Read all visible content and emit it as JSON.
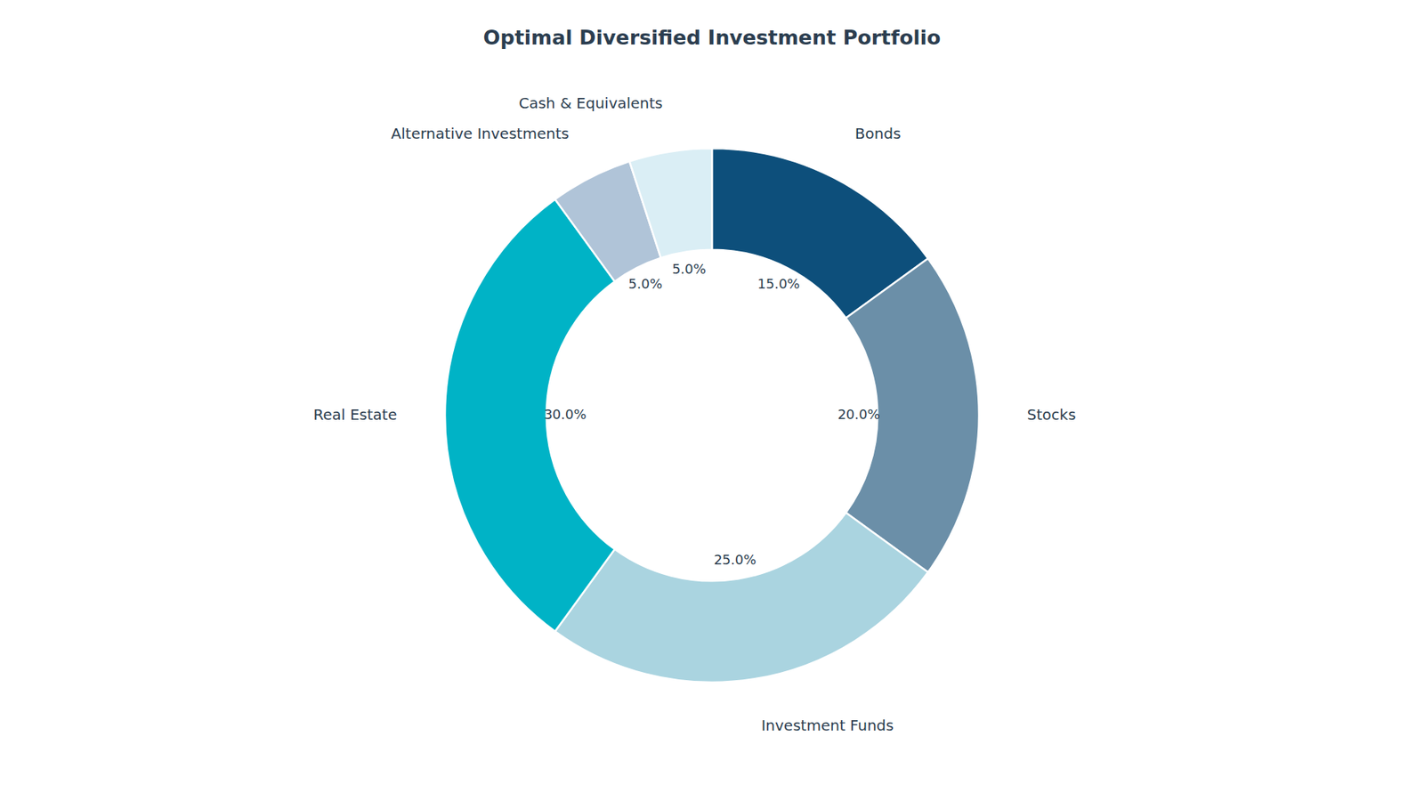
{
  "chart_data": {
    "type": "pie",
    "title": "Optimal Diversified Investment Portfolio",
    "categories": [
      "Bonds",
      "Stocks",
      "Investment Funds",
      "Real Estate",
      "Alternative Investments",
      "Cash & Equivalents"
    ],
    "values": [
      15.0,
      20.0,
      25.0,
      30.0,
      5.0,
      5.0
    ],
    "value_labels": [
      "15.0%",
      "20.0%",
      "25.0%",
      "30.0%",
      "5.0%",
      "5.0%"
    ],
    "colors": [
      "#0d4f7b",
      "#6b8fa8",
      "#aad4e0",
      "#00b3c6",
      "#b0c4d8",
      "#daeef5"
    ],
    "data_labels": true
  }
}
